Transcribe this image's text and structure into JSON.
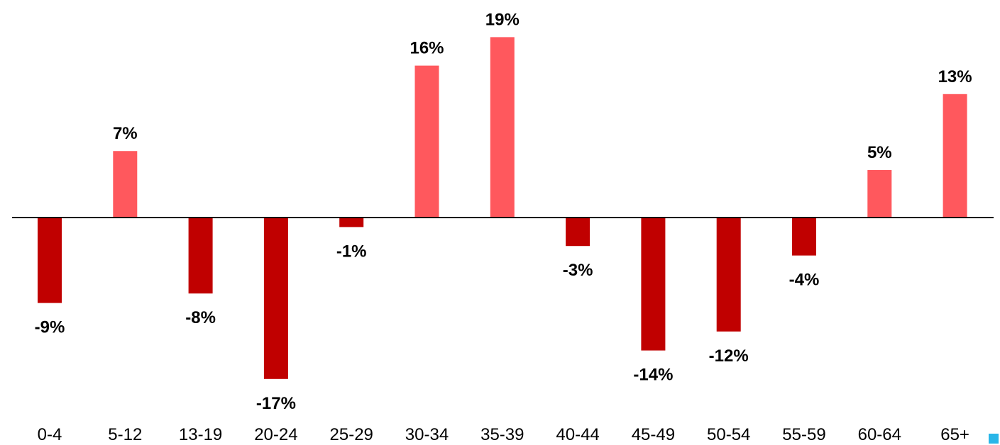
{
  "chart_data": {
    "type": "bar",
    "categories": [
      "0-4",
      "5-12",
      "13-19",
      "20-24",
      "25-29",
      "30-34",
      "35-39",
      "40-44",
      "45-49",
      "50-54",
      "55-59",
      "60-64",
      "65+"
    ],
    "values": [
      -9,
      7,
      -8,
      -17,
      -1,
      16,
      19,
      -3,
      -14,
      -12,
      -4,
      5,
      13
    ],
    "data_labels": [
      "-9%",
      "7%",
      "-8%",
      "-17%",
      "-1%",
      "16%",
      "19%",
      "-3%",
      "-14%",
      "-12%",
      "-4%",
      "5%",
      "13%"
    ],
    "title": "",
    "xlabel": "",
    "ylabel": "",
    "ylim": [
      -17,
      19
    ],
    "grid": false,
    "legend": "none",
    "colors": {
      "positive": "#ff585d",
      "negative": "#c00000",
      "axis": "#000000",
      "marker": "#29b6e8"
    }
  }
}
